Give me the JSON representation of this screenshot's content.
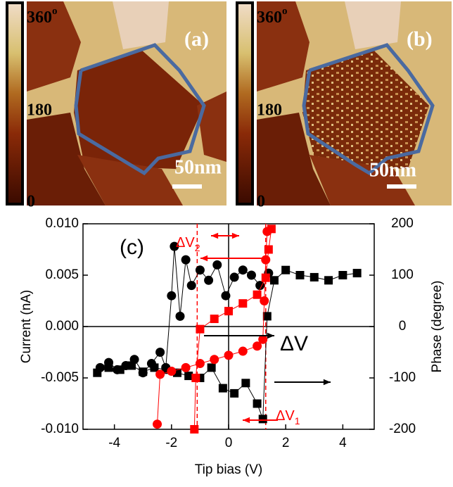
{
  "images": {
    "a": {
      "label": "(a)",
      "scale_bar": "50nm"
    },
    "b": {
      "label": "(b)",
      "scale_bar": "50nm"
    },
    "colorbar": {
      "top": {
        "text": "360",
        "sup": "o"
      },
      "middle": "180",
      "bottom": "0"
    }
  },
  "chart_data": {
    "type": "scatter",
    "panel_label": "(c)",
    "xlabel": "Tip bias (V)",
    "ylabel": "Current (nA)",
    "y2label": "Phase (degree)",
    "xlim": [
      -5.1,
      5.1
    ],
    "xticks": [
      -4,
      -2,
      0,
      2,
      4
    ],
    "ylim": [
      -0.01,
      0.01
    ],
    "yticks": [
      {
        "value": -0.01,
        "label": "-0.010"
      },
      {
        "value": -0.005,
        "label": "-0.005"
      },
      {
        "value": 0,
        "label": "0.000"
      },
      {
        "value": 0.005,
        "label": "0.005"
      },
      {
        "value": 0.01,
        "label": "0.010"
      }
    ],
    "y2lim": [
      -200,
      200
    ],
    "y2ticks": [
      -200,
      -100,
      0,
      100,
      200
    ],
    "series": [
      {
        "color": "#000000",
        "marker": "circle",
        "x": [
          -4.5,
          -4.2,
          -3.9,
          -3.6,
          -3.3,
          -3.0,
          -2.7,
          -2.4,
          -2.2,
          -2.0,
          -1.9,
          -1.7,
          -1.5,
          -1.3,
          -1.0,
          -0.7,
          -0.4,
          -0.1,
          0.2,
          0.5,
          0.8,
          1.1,
          1.4
        ],
        "values": [
          -0.004,
          -0.0035,
          -0.0042,
          -0.0038,
          -0.0032,
          -0.0045,
          -0.0036,
          -0.0025,
          -0.004,
          0.003,
          0.0078,
          0.001,
          0.0065,
          0.004,
          0.0055,
          0.0045,
          0.006,
          0.003,
          0.0048,
          0.0055,
          0.005,
          0.004,
          0.0052
        ]
      },
      {
        "color": "#000000",
        "marker": "square",
        "x": [
          -4.6,
          -4.2,
          -3.8,
          -3.4,
          -3.0,
          -2.6,
          -2.2,
          -1.8,
          -1.4,
          -1.0,
          -0.6,
          -0.2,
          0.2,
          0.6,
          1.0,
          1.2,
          1.35,
          1.6,
          2.0,
          2.5,
          3.0,
          3.5,
          4.0,
          4.5
        ],
        "values": [
          -0.0045,
          -0.004,
          -0.0042,
          -0.0038,
          -0.0044,
          -0.004,
          -0.0042,
          -0.0045,
          -0.0048,
          -0.005,
          -0.004,
          -0.006,
          -0.0065,
          -0.0055,
          -0.0075,
          -0.009,
          0.001,
          0.0045,
          0.0055,
          0.005,
          0.0048,
          0.0045,
          0.005,
          0.0052
        ]
      },
      {
        "color": "#ff0000",
        "marker": "circle",
        "axis": "y2",
        "x": [
          -2.5,
          -2.4,
          -2.0,
          -1.5,
          -1.0,
          -0.5,
          0,
          0.5,
          1.0,
          1.2,
          1.25,
          1.3,
          1.35
        ],
        "values": [
          -190,
          -93,
          -87,
          -80,
          -72,
          -64,
          -56,
          -48,
          -38,
          -25,
          50,
          130,
          185
        ]
      },
      {
        "color": "#ff0000",
        "marker": "square",
        "axis": "y2",
        "x": [
          1.5,
          1.4,
          1.3,
          1.0,
          0.5,
          0,
          -0.5,
          -1.0,
          -1.15,
          -1.2
        ],
        "values": [
          190,
          150,
          95,
          62,
          45,
          30,
          15,
          -5,
          -100,
          -200
        ]
      }
    ],
    "annotations": {
      "dv2": {
        "text": "ΔV",
        "sub": "2"
      },
      "dv": "ΔV",
      "dv1": {
        "text": "ΔV",
        "sub": "1"
      }
    }
  }
}
